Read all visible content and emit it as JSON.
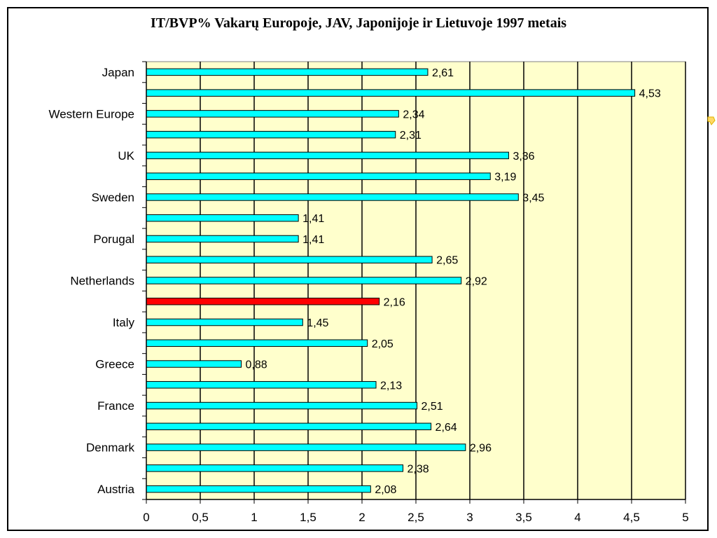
{
  "chart_data": {
    "type": "bar",
    "orientation": "horizontal",
    "title": "IT/BVP% Vakarų Europoje, JAV, Japonijoje ir Lietuvoje 1997 metais",
    "categories": [
      "Japan",
      "",
      "Western Europe",
      "",
      "UK",
      "",
      "Sweden",
      "",
      "Porugal",
      "",
      "Netherlands",
      "",
      "Italy",
      "",
      "Greece",
      "",
      "France",
      "",
      "Denmark",
      "",
      "Austria"
    ],
    "values": [
      2.61,
      4.53,
      2.34,
      2.31,
      3.36,
      3.19,
      3.45,
      1.41,
      1.41,
      2.65,
      2.92,
      2.16,
      1.45,
      2.05,
      0.88,
      2.13,
      2.51,
      2.64,
      2.96,
      2.38,
      2.08
    ],
    "value_labels": [
      "2,61",
      "4,53",
      "2,34",
      "2,31",
      "3,36",
      "3,19",
      "3,45",
      "1,41",
      "1,41",
      "2,65",
      "2,92",
      "2,16",
      "1,45",
      "2,05",
      "0,88",
      "2,13",
      "2,51",
      "2,64",
      "2,96",
      "2,38",
      "2,08"
    ],
    "highlight_index": 11,
    "xlim": [
      0,
      5
    ],
    "xticks": [
      0,
      0.5,
      1,
      1.5,
      2,
      2.5,
      3,
      3.5,
      4,
      4.5,
      5
    ],
    "xtick_labels": [
      "0",
      "0,5",
      "1",
      "1,5",
      "2",
      "2,5",
      "3",
      "3,5",
      "4",
      "4,5",
      "5"
    ],
    "grid": true,
    "colors": {
      "bar": "#00FFFF",
      "highlight": "#FF0000",
      "plot_background": "#FFFFCC",
      "bar_outline": "#000000"
    }
  }
}
